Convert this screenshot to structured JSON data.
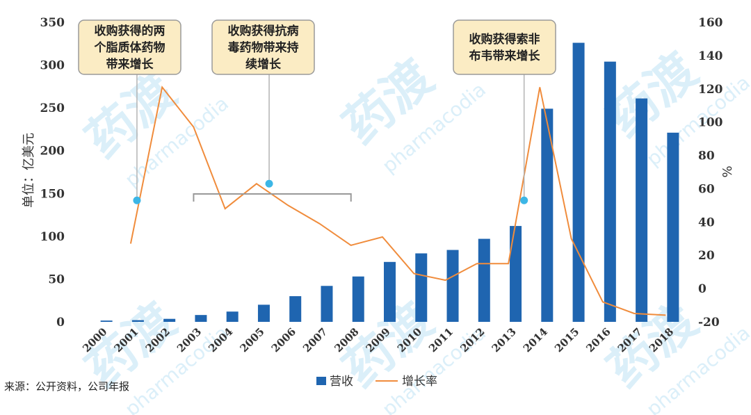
{
  "chart_data": {
    "type": "bar",
    "categories": [
      "2000",
      "2001",
      "2002",
      "2003",
      "2004",
      "2005",
      "2006",
      "2007",
      "2008",
      "2009",
      "2010",
      "2011",
      "2012",
      "2013",
      "2014",
      "2015",
      "2016",
      "2017",
      "2018"
    ],
    "series": [
      {
        "name": "营收",
        "axis": "left",
        "kind": "bar",
        "color": "#1f65b0",
        "values": [
          1.5,
          2,
          3.5,
          8,
          12,
          20,
          30,
          42,
          53,
          70,
          80,
          84,
          97,
          112,
          249,
          326,
          304,
          261,
          221
        ]
      },
      {
        "name": "增长率",
        "axis": "right",
        "kind": "line",
        "color": "#f08c3c",
        "values": [
          null,
          27,
          121,
          97,
          48,
          63,
          50,
          39,
          26,
          31,
          9,
          5,
          15,
          15,
          121,
          30,
          -8,
          -15,
          -16
        ]
      }
    ],
    "ylabel": "单位：亿美元",
    "y2label": "%",
    "ylim": [
      0,
      350
    ],
    "yticks": [
      0,
      50,
      100,
      150,
      200,
      250,
      300,
      350
    ],
    "y2lim": [
      -20,
      160
    ],
    "y2ticks": [
      -20,
      0,
      20,
      40,
      60,
      80,
      100,
      120,
      140,
      160
    ],
    "legend_position": "bottom",
    "grid": false,
    "annotations": [
      {
        "lines": [
          "收购获得的两",
          "个脂质体药物",
          "带来增长"
        ],
        "x": 2001.2,
        "y2": 53
      },
      {
        "lines": [
          "收购获得抗病",
          "毒药物带来持",
          "续增长"
        ],
        "x": 2005.4,
        "y2": 63
      },
      {
        "lines": [
          "收购获得索非",
          "布韦带来增长"
        ],
        "x": 2013.5,
        "y2": 53
      }
    ],
    "bracket": {
      "from": 2003,
      "to": 2008
    }
  },
  "source_text": "来源：公开资料，公司年报",
  "watermark": {
    "cn": "药渡",
    "en": "pharmacodia"
  }
}
